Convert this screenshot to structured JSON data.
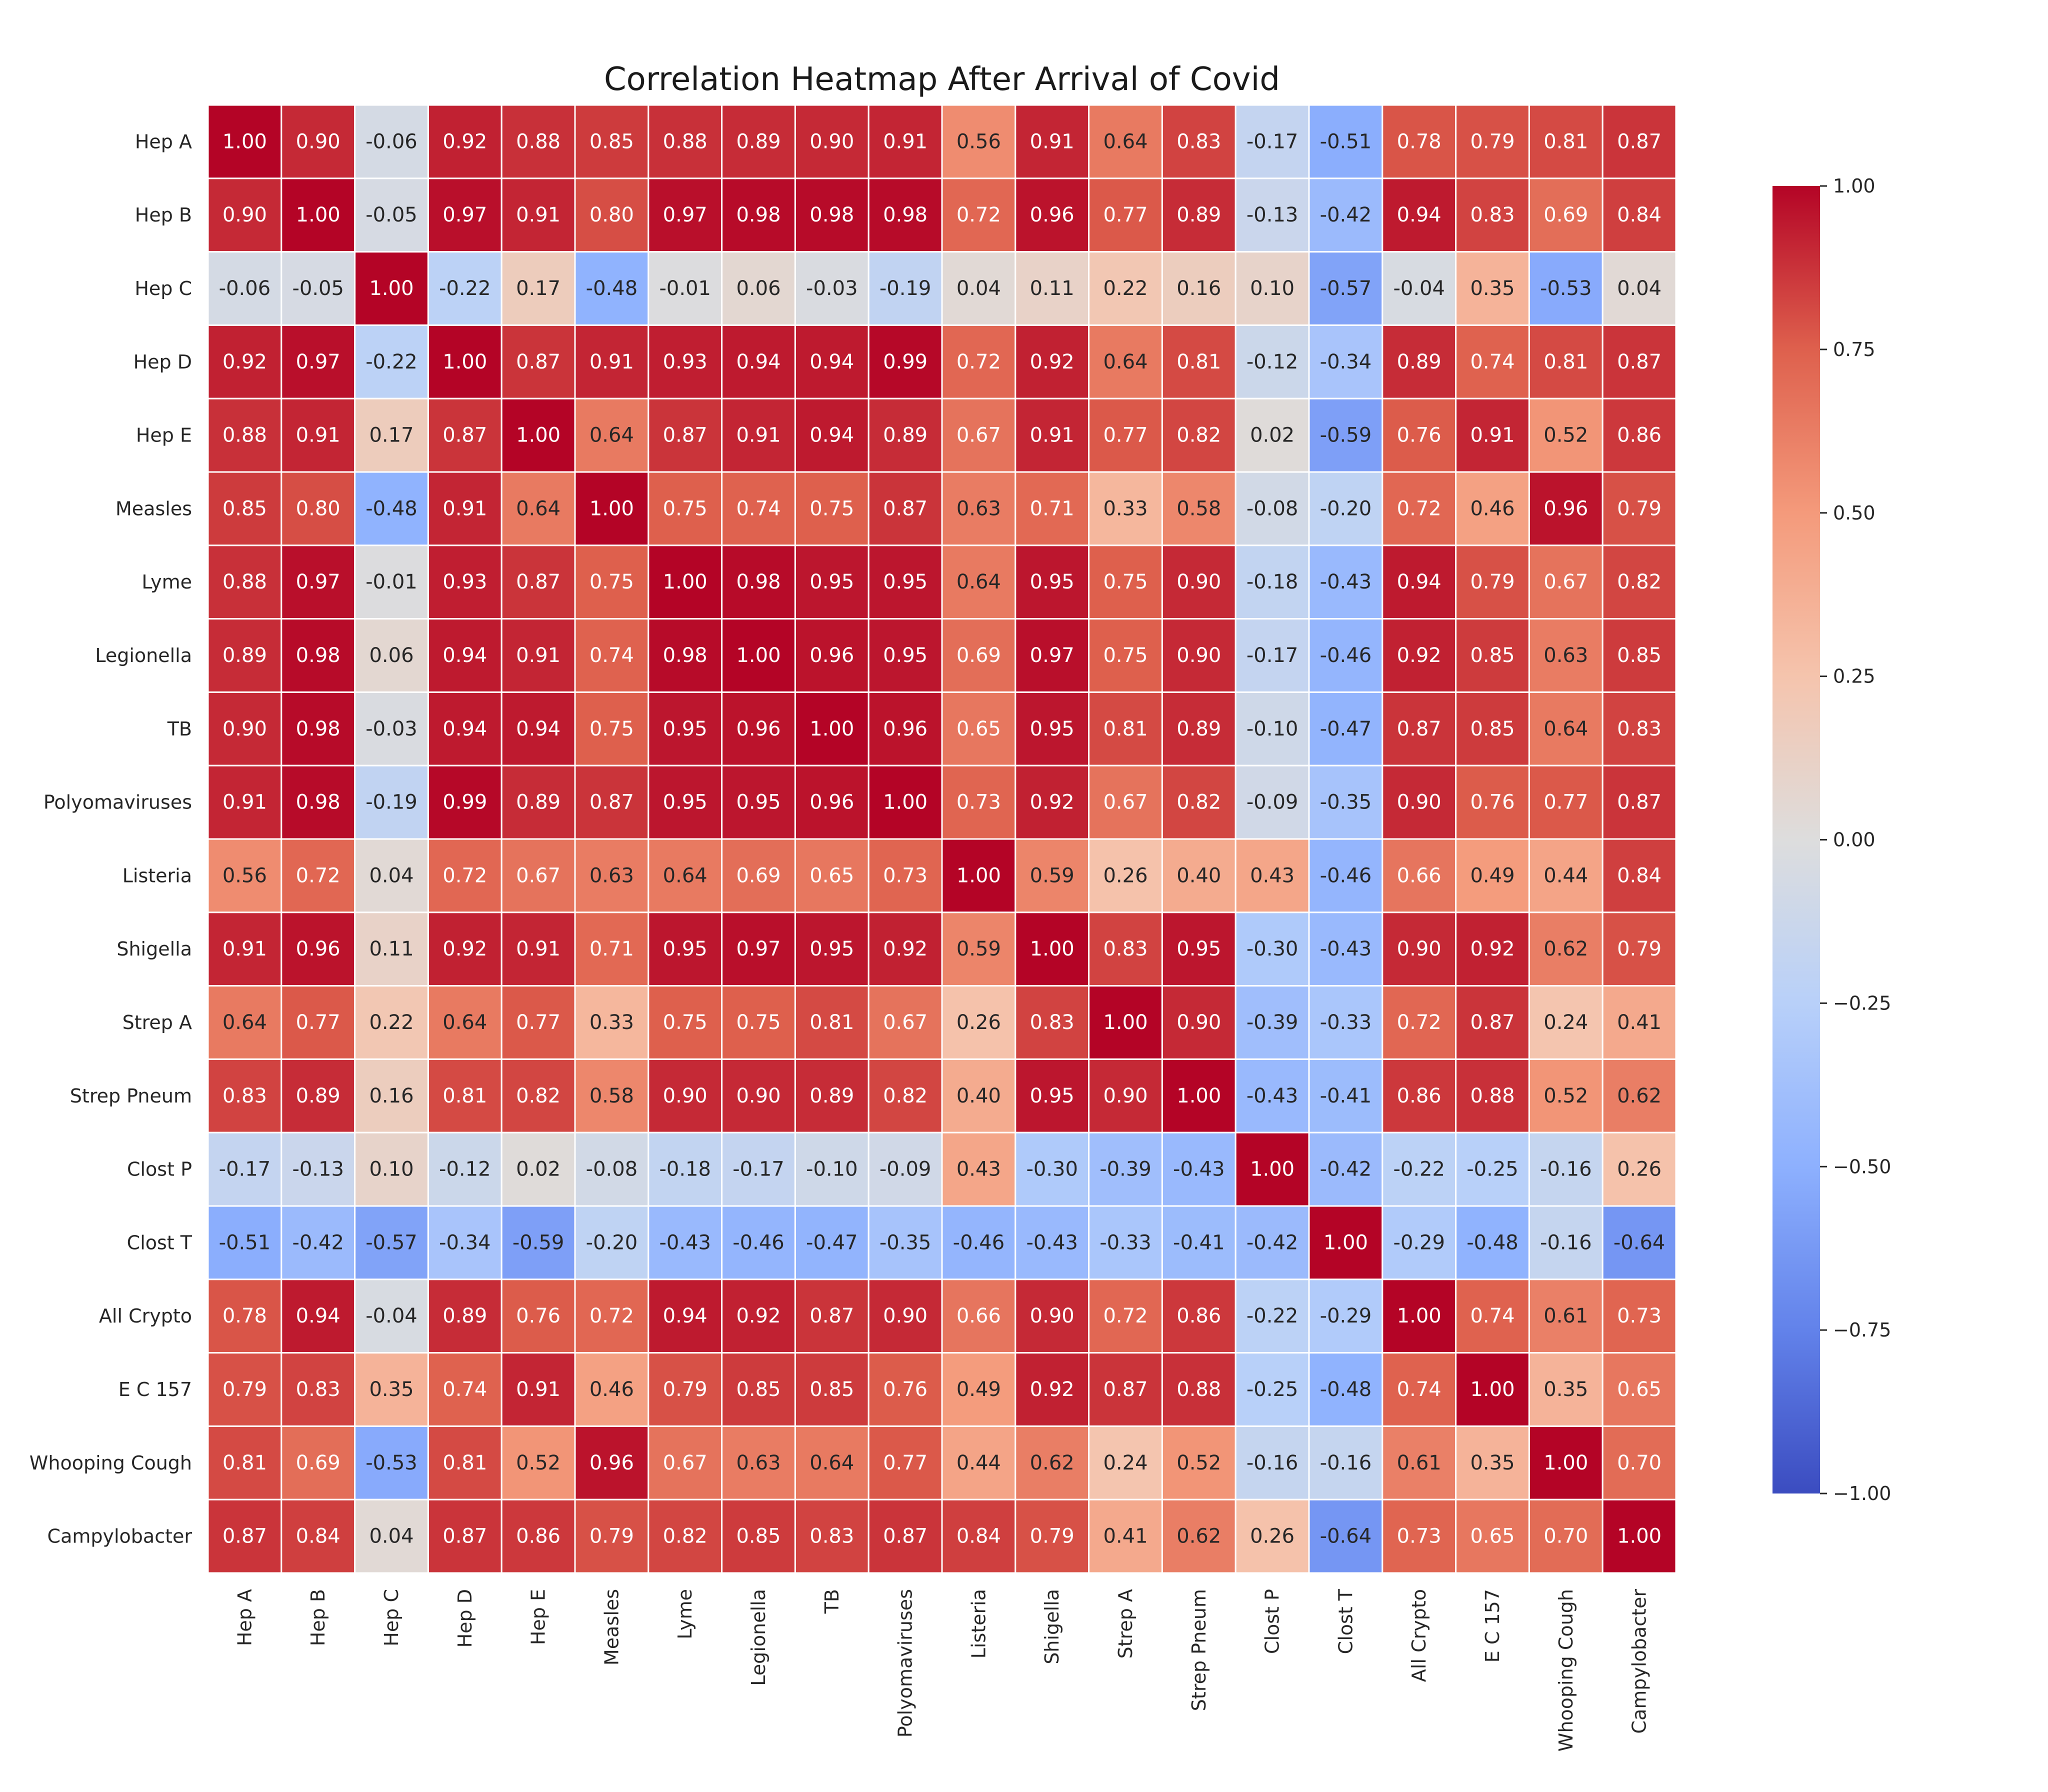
{
  "chart_data": {
    "type": "heatmap",
    "title": "Correlation Heatmap After Arrival of Covid",
    "row_labels": [
      "Hep A",
      "Hep B",
      "Hep C",
      "Hep D",
      "Hep E",
      "Measles",
      "Lyme",
      "Legionella",
      "TB",
      "Polyomaviruses",
      "Listeria",
      "Shigella",
      "Strep A",
      "Strep Pneum",
      "Clost P",
      "Clost T",
      "All Crypto",
      "E C 157",
      "Whooping Cough",
      "Campylobacter"
    ],
    "col_labels": [
      "Hep A",
      "Hep B",
      "Hep C",
      "Hep D",
      "Hep E",
      "Measles",
      "Lyme",
      "Legionella",
      "TB",
      "Polyomaviruses",
      "Listeria",
      "Shigella",
      "Strep A",
      "Strep Pneum",
      "Clost P",
      "Clost T",
      "All Crypto",
      "E C 157",
      "Whooping Cough",
      "Campylobacter"
    ],
    "values": [
      [
        1.0,
        0.9,
        -0.06,
        0.92,
        0.88,
        0.85,
        0.88,
        0.89,
        0.9,
        0.91,
        0.56,
        0.91,
        0.64,
        0.83,
        -0.17,
        -0.51,
        0.78,
        0.79,
        0.81,
        0.87
      ],
      [
        0.9,
        1.0,
        -0.05,
        0.97,
        0.91,
        0.8,
        0.97,
        0.98,
        0.98,
        0.98,
        0.72,
        0.96,
        0.77,
        0.89,
        -0.13,
        -0.42,
        0.94,
        0.83,
        0.69,
        0.84
      ],
      [
        -0.06,
        -0.05,
        1.0,
        -0.22,
        0.17,
        -0.48,
        -0.01,
        0.06,
        -0.03,
        -0.19,
        0.04,
        0.11,
        0.22,
        0.16,
        0.1,
        -0.57,
        -0.04,
        0.35,
        -0.53,
        0.04
      ],
      [
        0.92,
        0.97,
        -0.22,
        1.0,
        0.87,
        0.91,
        0.93,
        0.94,
        0.94,
        0.99,
        0.72,
        0.92,
        0.64,
        0.81,
        -0.12,
        -0.34,
        0.89,
        0.74,
        0.81,
        0.87
      ],
      [
        0.88,
        0.91,
        0.17,
        0.87,
        1.0,
        0.64,
        0.87,
        0.91,
        0.94,
        0.89,
        0.67,
        0.91,
        0.77,
        0.82,
        0.02,
        -0.59,
        0.76,
        0.91,
        0.52,
        0.86
      ],
      [
        0.85,
        0.8,
        -0.48,
        0.91,
        0.64,
        1.0,
        0.75,
        0.74,
        0.75,
        0.87,
        0.63,
        0.71,
        0.33,
        0.58,
        -0.08,
        -0.2,
        0.72,
        0.46,
        0.96,
        0.79
      ],
      [
        0.88,
        0.97,
        -0.01,
        0.93,
        0.87,
        0.75,
        1.0,
        0.98,
        0.95,
        0.95,
        0.64,
        0.95,
        0.75,
        0.9,
        -0.18,
        -0.43,
        0.94,
        0.79,
        0.67,
        0.82
      ],
      [
        0.89,
        0.98,
        0.06,
        0.94,
        0.91,
        0.74,
        0.98,
        1.0,
        0.96,
        0.95,
        0.69,
        0.97,
        0.75,
        0.9,
        -0.17,
        -0.46,
        0.92,
        0.85,
        0.63,
        0.85
      ],
      [
        0.9,
        0.98,
        -0.03,
        0.94,
        0.94,
        0.75,
        0.95,
        0.96,
        1.0,
        0.96,
        0.65,
        0.95,
        0.81,
        0.89,
        -0.1,
        -0.47,
        0.87,
        0.85,
        0.64,
        0.83
      ],
      [
        0.91,
        0.98,
        -0.19,
        0.99,
        0.89,
        0.87,
        0.95,
        0.95,
        0.96,
        1.0,
        0.73,
        0.92,
        0.67,
        0.82,
        -0.09,
        -0.35,
        0.9,
        0.76,
        0.77,
        0.87
      ],
      [
        0.56,
        0.72,
        0.04,
        0.72,
        0.67,
        0.63,
        0.64,
        0.69,
        0.65,
        0.73,
        1.0,
        0.59,
        0.26,
        0.4,
        0.43,
        -0.46,
        0.66,
        0.49,
        0.44,
        0.84
      ],
      [
        0.91,
        0.96,
        0.11,
        0.92,
        0.91,
        0.71,
        0.95,
        0.97,
        0.95,
        0.92,
        0.59,
        1.0,
        0.83,
        0.95,
        -0.3,
        -0.43,
        0.9,
        0.92,
        0.62,
        0.79
      ],
      [
        0.64,
        0.77,
        0.22,
        0.64,
        0.77,
        0.33,
        0.75,
        0.75,
        0.81,
        0.67,
        0.26,
        0.83,
        1.0,
        0.9,
        -0.39,
        -0.33,
        0.72,
        0.87,
        0.24,
        0.41
      ],
      [
        0.83,
        0.89,
        0.16,
        0.81,
        0.82,
        0.58,
        0.9,
        0.9,
        0.89,
        0.82,
        0.4,
        0.95,
        0.9,
        1.0,
        -0.43,
        -0.41,
        0.86,
        0.88,
        0.52,
        0.62
      ],
      [
        -0.17,
        -0.13,
        0.1,
        -0.12,
        0.02,
        -0.08,
        -0.18,
        -0.17,
        -0.1,
        -0.09,
        0.43,
        -0.3,
        -0.39,
        -0.43,
        1.0,
        -0.42,
        -0.22,
        -0.25,
        -0.16,
        0.26
      ],
      [
        -0.51,
        -0.42,
        -0.57,
        -0.34,
        -0.59,
        -0.2,
        -0.43,
        -0.46,
        -0.47,
        -0.35,
        -0.46,
        -0.43,
        -0.33,
        -0.41,
        -0.42,
        1.0,
        -0.29,
        -0.48,
        -0.16,
        -0.64
      ],
      [
        0.78,
        0.94,
        -0.04,
        0.89,
        0.76,
        0.72,
        0.94,
        0.92,
        0.87,
        0.9,
        0.66,
        0.9,
        0.72,
        0.86,
        -0.22,
        -0.29,
        1.0,
        0.74,
        0.61,
        0.73
      ],
      [
        0.79,
        0.83,
        0.35,
        0.74,
        0.91,
        0.46,
        0.79,
        0.85,
        0.85,
        0.76,
        0.49,
        0.92,
        0.87,
        0.88,
        -0.25,
        -0.48,
        0.74,
        1.0,
        0.35,
        0.65
      ],
      [
        0.81,
        0.69,
        -0.53,
        0.81,
        0.52,
        0.96,
        0.67,
        0.63,
        0.64,
        0.77,
        0.44,
        0.62,
        0.24,
        0.52,
        -0.16,
        -0.16,
        0.61,
        0.35,
        1.0,
        0.7
      ],
      [
        0.87,
        0.84,
        0.04,
        0.87,
        0.86,
        0.79,
        0.82,
        0.85,
        0.83,
        0.87,
        0.84,
        0.79,
        0.41,
        0.62,
        0.26,
        -0.64,
        0.73,
        0.65,
        0.7,
        1.0
      ]
    ],
    "value_format": "2 decimals",
    "colormap": "coolwarm",
    "colorbar": {
      "vmin": -1.0,
      "vmax": 1.0,
      "ticks": [
        1.0,
        0.75,
        0.5,
        0.25,
        0.0,
        -0.25,
        -0.5,
        -0.75,
        -1.0
      ],
      "tick_labels": [
        "1.00",
        "0.75",
        "0.50",
        "0.25",
        "0.00",
        "−0.25",
        "−0.50",
        "−0.75",
        "−1.00"
      ]
    },
    "xlabel": "",
    "ylabel": ""
  }
}
